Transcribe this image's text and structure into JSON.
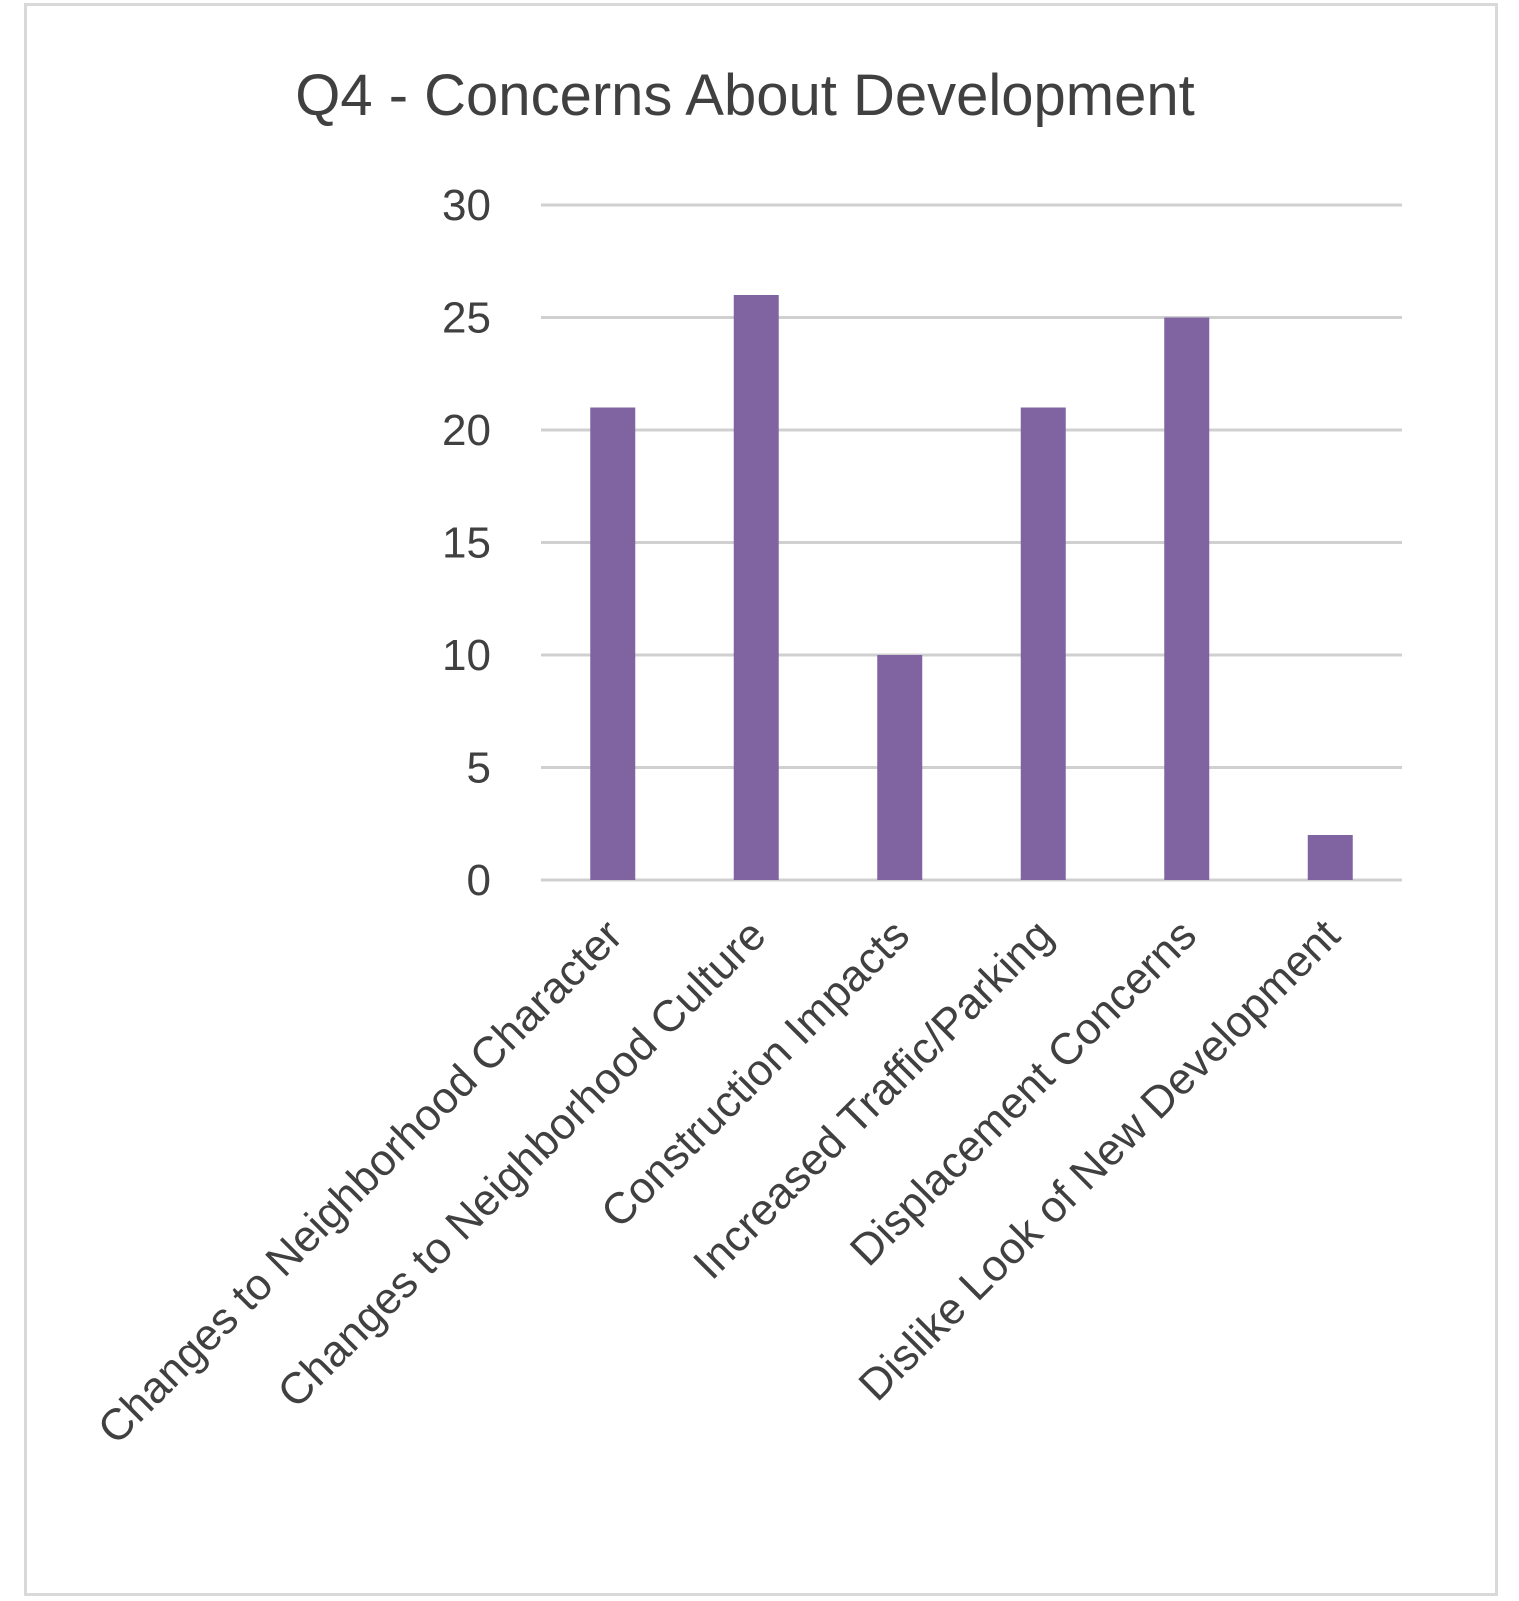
{
  "chart_data": {
    "type": "bar",
    "title": "Q4 - Concerns About Development",
    "xlabel": "",
    "ylabel": "",
    "categories": [
      "Changes to Neighborhood Character",
      "Changes to Neighborhood Culture",
      "Construction Impacts",
      "Increased Traffic/Parking",
      "Displacement Concerns",
      "Dislike Look of New Development"
    ],
    "values": [
      21,
      26,
      10,
      21,
      25,
      2
    ],
    "ylim": [
      0,
      30
    ],
    "yticks": [
      0,
      5,
      10,
      15,
      20,
      25,
      30
    ],
    "grid": true,
    "legend": "none",
    "bar_color": "#8064a2"
  }
}
